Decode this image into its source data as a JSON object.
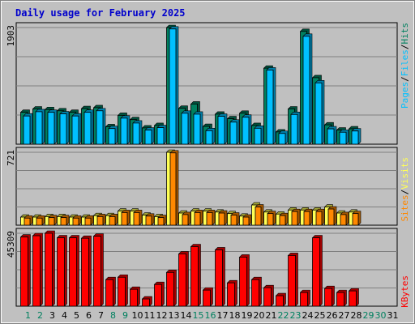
{
  "title": "Daily usage for February 2025",
  "colors": {
    "hits": "#00805f",
    "files": "#00c0ff",
    "pages": "#00c0ff",
    "visits": "#ffff55",
    "sites": "#ff8800",
    "kbytes": "#ff0000",
    "weekday": "#000000",
    "weekend": "#00805f",
    "future": "#00805f",
    "title": "#0000cc"
  },
  "legend": {
    "top": [
      "Pages",
      "Files",
      "Hits"
    ],
    "middle": [
      "Sites",
      "Visits"
    ],
    "bottom": [
      "KBytes"
    ]
  },
  "chart_data": {
    "type": "bar",
    "categories": [
      "1",
      "2",
      "3",
      "4",
      "5",
      "6",
      "7",
      "8",
      "9",
      "10",
      "11",
      "12",
      "13",
      "14",
      "15",
      "16",
      "17",
      "18",
      "19",
      "20",
      "21",
      "22",
      "23",
      "24",
      "25",
      "26",
      "27",
      "28",
      "29",
      "30",
      "31"
    ],
    "weekend_days": [
      1,
      2,
      8,
      9,
      15,
      16,
      22,
      23,
      29,
      30
    ],
    "days_with_data": 28,
    "panels": [
      {
        "ymax_label": "1903",
        "ymax": 1903,
        "gridlines": 4,
        "series": [
          {
            "name": "Hits",
            "values": [
              520,
              575,
              565,
              545,
              520,
              580,
              595,
              285,
              470,
              400,
              265,
              305,
              1903,
              585,
              655,
              290,
              490,
              415,
              505,
              305,
              1240,
              200,
              575,
              1840,
              1085,
              315,
              230,
              250
            ]
          },
          {
            "name": "Files",
            "values": [
              460,
              530,
              520,
              495,
              460,
              520,
              545,
              255,
              425,
              345,
              230,
              270,
              1880,
              505,
              490,
              220,
              455,
              360,
              440,
              260,
              1210,
              175,
              485,
              1760,
              1000,
              250,
              195,
              215
            ]
          },
          {
            "name": "Pages",
            "values": [
              0,
              0,
              0,
              0,
              0,
              0,
              0,
              0,
              0,
              0,
              0,
              0,
              0,
              0,
              0,
              0,
              0,
              0,
              0,
              0,
              0,
              0,
              0,
              0,
              0,
              0,
              0,
              0
            ]
          }
        ]
      },
      {
        "ymax_label": "721",
        "ymax": 721,
        "gridlines": 4,
        "series": [
          {
            "name": "Visits",
            "values": [
              80,
              80,
              85,
              85,
              80,
              80,
              95,
              95,
              140,
              140,
              100,
              85,
              721,
              120,
              140,
              140,
              130,
              115,
              90,
              200,
              130,
              110,
              150,
              150,
              150,
              180,
              120,
              130
            ]
          },
          {
            "name": "Sites",
            "values": [
              70,
              70,
              75,
              75,
              70,
              70,
              85,
              85,
              125,
              125,
              90,
              75,
              715,
              105,
              125,
              125,
              120,
              100,
              80,
              180,
              115,
              95,
              135,
              135,
              135,
              160,
              105,
              115
            ]
          }
        ]
      },
      {
        "ymax_label": "45309",
        "ymax": 45309,
        "gridlines": 4,
        "series": [
          {
            "name": "KBytes",
            "values": [
              43000,
              43800,
              45309,
              42500,
              42500,
              42200,
              43500,
              16500,
              18000,
              10500,
              4500,
              13500,
              21000,
              32500,
              37000,
              10000,
              35000,
              14500,
              30500,
              16500,
              11500,
              6500,
              31500,
              8500,
              42500,
              11000,
              8500,
              9500
            ]
          }
        ]
      }
    ]
  }
}
